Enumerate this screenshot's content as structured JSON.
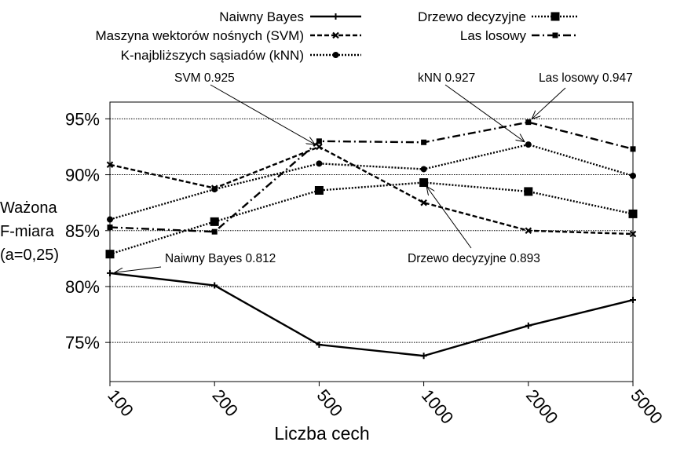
{
  "chart_data": {
    "type": "line",
    "xlabel": "Liczba cech",
    "ylabel": [
      "Ważona",
      "F-miara",
      "(a=0,25)"
    ],
    "categories": [
      "100",
      "200",
      "500",
      "1000",
      "2000",
      "5000"
    ],
    "y_ticks": [
      "75%",
      "80%",
      "85%",
      "90%",
      "95%"
    ],
    "ylim": [
      71.5,
      96.5
    ],
    "grid": "horizontal",
    "legend_position": "top",
    "series": [
      {
        "name": "Naiwny Bayes",
        "values": [
          81.2,
          80.1,
          74.8,
          73.8,
          76.5,
          78.8
        ],
        "style": "solid",
        "marker": "plus"
      },
      {
        "name": "Maszyna wektorów nośnych (SVM)",
        "values": [
          90.9,
          88.8,
          92.5,
          87.5,
          85.0,
          84.7
        ],
        "style": "dashed",
        "marker": "x"
      },
      {
        "name": "K-najbliższych sąsiadów (kNN)",
        "values": [
          86.0,
          88.7,
          91.0,
          90.5,
          92.7,
          89.9
        ],
        "style": "dotted",
        "marker": "circle"
      },
      {
        "name": "Drzewo decyzyjne",
        "values": [
          82.9,
          85.8,
          88.6,
          89.3,
          88.5,
          86.5
        ],
        "style": "dotted",
        "marker": "square"
      },
      {
        "name": "Las losowy",
        "values": [
          85.3,
          84.9,
          93.0,
          92.9,
          94.7,
          92.3
        ],
        "style": "dashdot",
        "marker": "smallsquare"
      }
    ],
    "annotations": [
      {
        "label": "SVM",
        "value": "0.925",
        "series": 1,
        "point": 2
      },
      {
        "label": "kNN",
        "value": "0.927",
        "series": 2,
        "point": 4
      },
      {
        "label": "Las losowy",
        "value": "0.947",
        "series": 4,
        "point": 4
      },
      {
        "label": "Naiwny Bayes",
        "value": "0.812",
        "series": 0,
        "point": 0
      },
      {
        "label": "Drzewo decyzyjne",
        "value": "0.893",
        "series": 3,
        "point": 3
      }
    ]
  }
}
